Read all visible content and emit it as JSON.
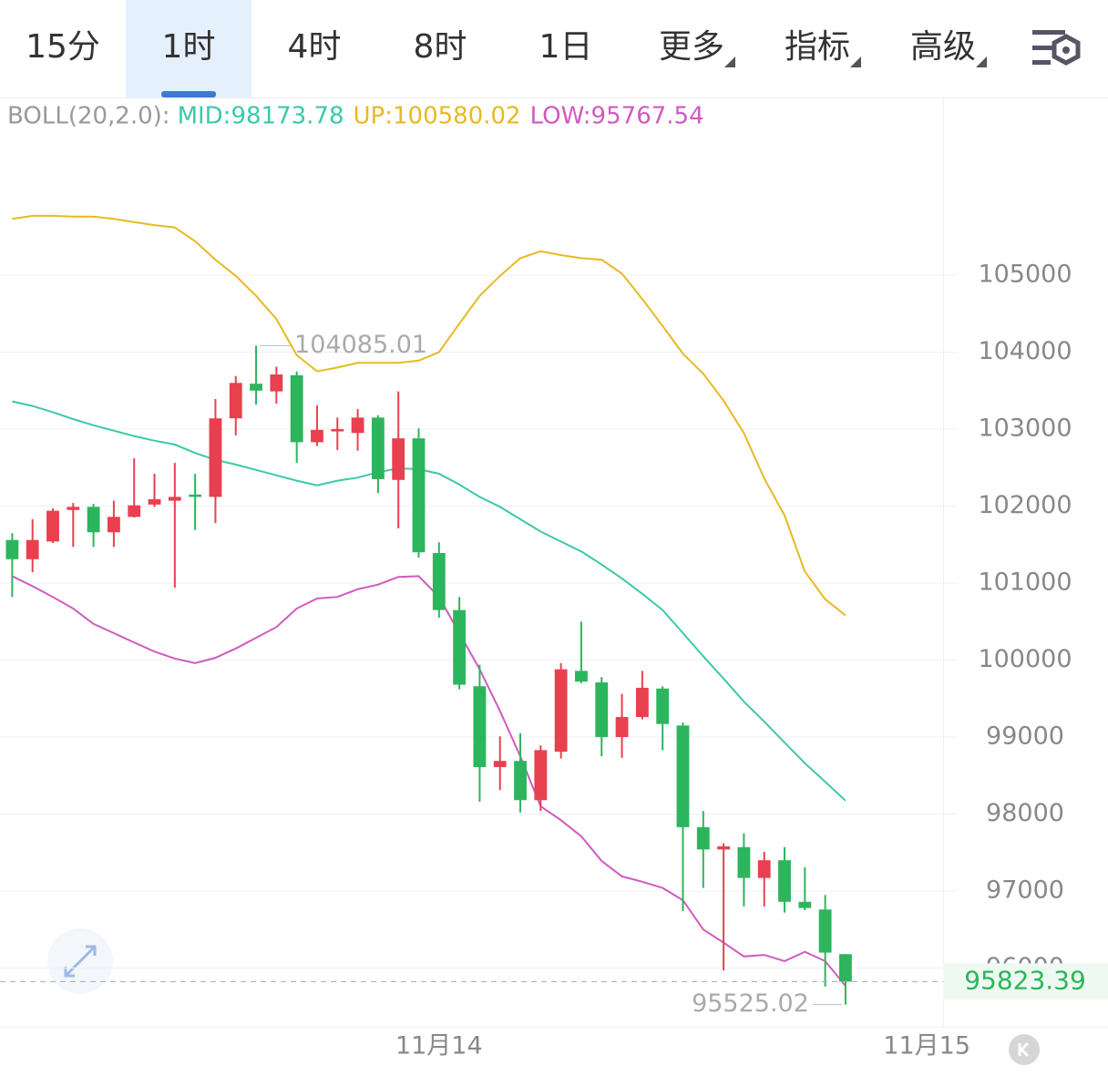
{
  "tabs": {
    "items": [
      "15分",
      "1时",
      "4时",
      "8时",
      "1日",
      "更多",
      "指标",
      "高级"
    ],
    "active": 1
  },
  "chart_data": {
    "type": "candlestick",
    "indicator_label": "BOLL(20,2.0):",
    "x": [
      0,
      1,
      2,
      3,
      4,
      5,
      6,
      7,
      8,
      9,
      10,
      11,
      12,
      13,
      14,
      15,
      16,
      17,
      18,
      19,
      20,
      21,
      22,
      23,
      24,
      25,
      26,
      27,
      28,
      29,
      30,
      31,
      32,
      33,
      34,
      35,
      36,
      37,
      38,
      39,
      40,
      41
    ],
    "open": [
      101560,
      101310,
      101540,
      101950,
      101990,
      101660,
      101860,
      102020,
      102070,
      102150,
      102120,
      103140,
      103590,
      103490,
      103700,
      102830,
      102970,
      102950,
      103150,
      102340,
      102880,
      101390,
      100650,
      99660,
      98610,
      98690,
      98180,
      98810,
      99860,
      99710,
      99000,
      99260,
      99630,
      99150,
      97830,
      97540,
      97570,
      97170,
      97400,
      96860,
      96760,
      96180
    ],
    "high": [
      101650,
      101830,
      101970,
      102040,
      102030,
      102070,
      102620,
      102420,
      102560,
      102420,
      103390,
      103690,
      104085.01,
      103810,
      103750,
      103310,
      103150,
      103260,
      103180,
      103490,
      103010,
      101530,
      100820,
      99940,
      99010,
      99050,
      98890,
      99960,
      100500,
      99780,
      99560,
      99860,
      99660,
      99190,
      98040,
      97620,
      97750,
      97510,
      97570,
      97310,
      96950,
      96180
    ],
    "low": [
      100820,
      101140,
      101520,
      101470,
      101470,
      101470,
      101850,
      101990,
      100940,
      101690,
      101780,
      102920,
      103320,
      103330,
      102560,
      102780,
      102730,
      102720,
      102170,
      101710,
      101330,
      100550,
      99620,
      98160,
      98310,
      98020,
      98040,
      98720,
      99700,
      98750,
      98730,
      99230,
      98830,
      96740,
      97040,
      95970,
      96800,
      96800,
      96720,
      96750,
      95760,
      95525.02
    ],
    "close": [
      101310,
      101560,
      101940,
      101990,
      101660,
      101860,
      102010,
      102090,
      102120,
      102120,
      103140,
      103600,
      103500,
      103710,
      102830,
      102990,
      103000,
      103150,
      102350,
      102880,
      101400,
      100650,
      99680,
      98610,
      98690,
      98180,
      98830,
      99880,
      99720,
      99000,
      99260,
      99640,
      99170,
      97830,
      97540,
      97580,
      97170,
      97400,
      96860,
      96780,
      96200,
      95823.39
    ],
    "up_color": "#e8404f",
    "down_color": "#2db55d",
    "series": [
      {
        "name": "MID:98173.78",
        "color": "#3cc9a8",
        "values": [
          103360,
          103300,
          103220,
          103130,
          103050,
          102980,
          102910,
          102850,
          102800,
          102690,
          102600,
          102540,
          102470,
          102400,
          102330,
          102270,
          102330,
          102370,
          102440,
          102490,
          102480,
          102420,
          102280,
          102120,
          101990,
          101830,
          101670,
          101540,
          101410,
          101240,
          101060,
          100860,
          100650,
          100350,
          100050,
          99760,
          99460,
          99200,
          98930,
          98660,
          98420,
          98173.78
        ]
      },
      {
        "name": "UP:100580.02",
        "color": "#e8b923",
        "values": [
          105730,
          105770,
          105770,
          105760,
          105760,
          105730,
          105690,
          105650,
          105620,
          105440,
          105200,
          104990,
          104730,
          104430,
          103960,
          103750,
          103800,
          103860,
          103860,
          103860,
          103890,
          104000,
          104370,
          104730,
          104990,
          105220,
          105310,
          105260,
          105220,
          105200,
          105020,
          104690,
          104340,
          103980,
          103720,
          103370,
          102950,
          102360,
          101880,
          101150,
          100790,
          100580.02
        ]
      },
      {
        "name": "LOW:95767.54",
        "color": "#d05ac0",
        "values": [
          101090,
          100960,
          100820,
          100670,
          100470,
          100350,
          100230,
          100110,
          100020,
          99960,
          100030,
          100150,
          100290,
          100430,
          100670,
          100800,
          100820,
          100920,
          100980,
          101080,
          101090,
          100820,
          100350,
          99880,
          99340,
          98750,
          98100,
          97920,
          97710,
          97390,
          97190,
          97120,
          97040,
          96880,
          96500,
          96330,
          96150,
          96170,
          96090,
          96210,
          96090,
          95767.54
        ]
      }
    ],
    "annotations": [
      {
        "x": 12,
        "value": 104085.01
      },
      {
        "x": 41,
        "value": 95525.02
      }
    ],
    "xlim": [
      -0.6,
      45.8
    ],
    "xticks": [
      {
        "value": 21,
        "label": "11月14"
      },
      {
        "value": 45,
        "label": "11月15"
      }
    ],
    "ylim": [
      95260,
      107296
    ],
    "yticks": [
      96000,
      97000,
      98000,
      99000,
      100000,
      101000,
      102000,
      103000,
      104000,
      105000
    ],
    "grid": true
  }
}
